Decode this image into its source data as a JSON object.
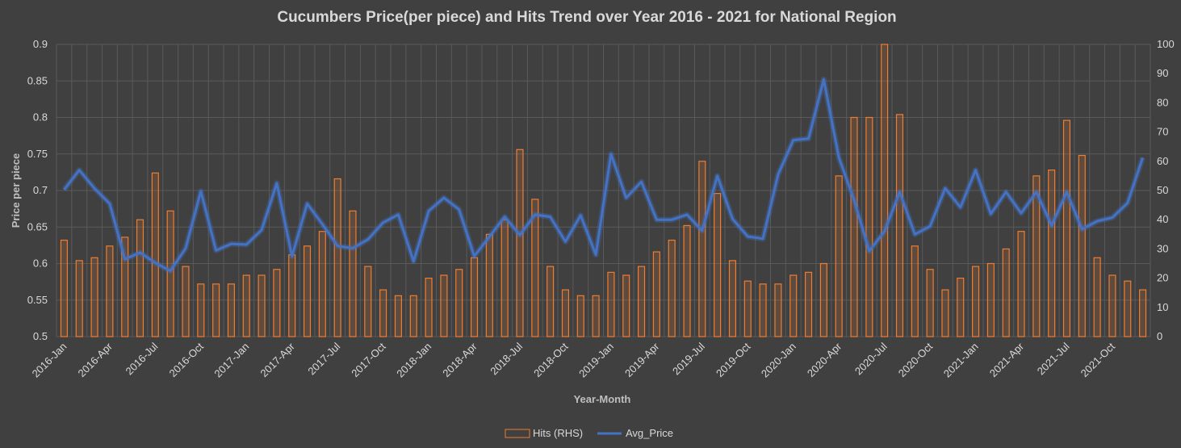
{
  "chart_data": {
    "type": "bar+line",
    "title": "Cucumbers Price(per piece) and Hits Trend over Year 2016 - 2021 for National Region",
    "xlabel": "Year-Month",
    "ylabel": "Price per piece",
    "ylim": [
      0.5,
      0.9
    ],
    "y2lim": [
      0,
      100
    ],
    "yticks": [
      "0.5",
      "0.55",
      "0.6",
      "0.65",
      "0.7",
      "0.75",
      "0.8",
      "0.85",
      "0.9"
    ],
    "y2ticks": [
      "0",
      "10",
      "20",
      "30",
      "40",
      "50",
      "60",
      "70",
      "80",
      "90",
      "100"
    ],
    "x_tick_labels": [
      "2016-Jan",
      "2016-Apr",
      "2016-Jul",
      "2016-Oct",
      "2017-Jan",
      "2017-Apr",
      "2017-Jul",
      "2017-Oct",
      "2018-Jan",
      "2018-Apr",
      "2018-Jul",
      "2018-Oct",
      "2019-Jan",
      "2019-Apr",
      "2019-Jul",
      "2019-Oct",
      "2020-Jan",
      "2020-Apr",
      "2020-Jul",
      "2020-Oct",
      "2021-Jan",
      "2021-Apr",
      "2021-Jul",
      "2021-Oct"
    ],
    "categories": [
      "2016-Jan",
      "2016-Feb",
      "2016-Mar",
      "2016-Apr",
      "2016-May",
      "2016-Jun",
      "2016-Jul",
      "2016-Aug",
      "2016-Sep",
      "2016-Oct",
      "2016-Nov",
      "2016-Dec",
      "2017-Jan",
      "2017-Feb",
      "2017-Mar",
      "2017-Apr",
      "2017-May",
      "2017-Jun",
      "2017-Jul",
      "2017-Aug",
      "2017-Sep",
      "2017-Oct",
      "2017-Nov",
      "2017-Dec",
      "2018-Jan",
      "2018-Feb",
      "2018-Mar",
      "2018-Apr",
      "2018-May",
      "2018-Jun",
      "2018-Jul",
      "2018-Aug",
      "2018-Sep",
      "2018-Oct",
      "2018-Nov",
      "2018-Dec",
      "2019-Jan",
      "2019-Feb",
      "2019-Mar",
      "2019-Apr",
      "2019-May",
      "2019-Jun",
      "2019-Jul",
      "2019-Aug",
      "2019-Sep",
      "2019-Oct",
      "2019-Nov",
      "2019-Dec",
      "2020-Jan",
      "2020-Feb",
      "2020-Mar",
      "2020-Apr",
      "2020-May",
      "2020-Jun",
      "2020-Jul",
      "2020-Aug",
      "2020-Sep",
      "2020-Oct",
      "2020-Nov",
      "2020-Dec",
      "2021-Jan",
      "2021-Feb",
      "2021-Mar",
      "2021-Apr",
      "2021-May",
      "2021-Jun",
      "2021-Jul",
      "2021-Aug",
      "2021-Sep",
      "2021-Oct",
      "2021-Nov",
      "2021-Dec"
    ],
    "series": [
      {
        "name": "Hits (RHS)",
        "type": "bar",
        "axis": "right",
        "color": "#ed7d31",
        "values": [
          33,
          26,
          27,
          31,
          34,
          40,
          56,
          43,
          24,
          18,
          18,
          18,
          21,
          21,
          23,
          28,
          31,
          36,
          54,
          43,
          24,
          16,
          14,
          14,
          20,
          21,
          23,
          27,
          35,
          40,
          64,
          47,
          24,
          16,
          14,
          14,
          22,
          21,
          24,
          29,
          33,
          38,
          60,
          49,
          26,
          19,
          18,
          18,
          21,
          22,
          25,
          55,
          75,
          75,
          100,
          76,
          31,
          23,
          16,
          20,
          24,
          25,
          30,
          36,
          55,
          57,
          74,
          62,
          27,
          21,
          19,
          16
        ]
      },
      {
        "name": "Avg_Price",
        "type": "line",
        "axis": "left",
        "color": "#4472c4",
        "values": [
          0.701,
          0.728,
          0.703,
          0.682,
          0.606,
          0.615,
          0.601,
          0.59,
          0.621,
          0.699,
          0.618,
          0.627,
          0.626,
          0.646,
          0.71,
          0.61,
          0.682,
          0.654,
          0.624,
          0.621,
          0.633,
          0.656,
          0.667,
          0.603,
          0.672,
          0.69,
          0.674,
          0.61,
          0.637,
          0.664,
          0.639,
          0.667,
          0.664,
          0.63,
          0.666,
          0.612,
          0.75,
          0.69,
          0.712,
          0.66,
          0.66,
          0.667,
          0.645,
          0.72,
          0.661,
          0.637,
          0.634,
          0.722,
          0.769,
          0.771,
          0.852,
          0.745,
          0.687,
          0.617,
          0.644,
          0.698,
          0.64,
          0.651,
          0.703,
          0.677,
          0.728,
          0.668,
          0.698,
          0.669,
          0.698,
          0.652,
          0.698,
          0.647,
          0.658,
          0.663,
          0.683,
          0.745
        ]
      }
    ],
    "legend_position": "bottom",
    "gridlines": true
  }
}
